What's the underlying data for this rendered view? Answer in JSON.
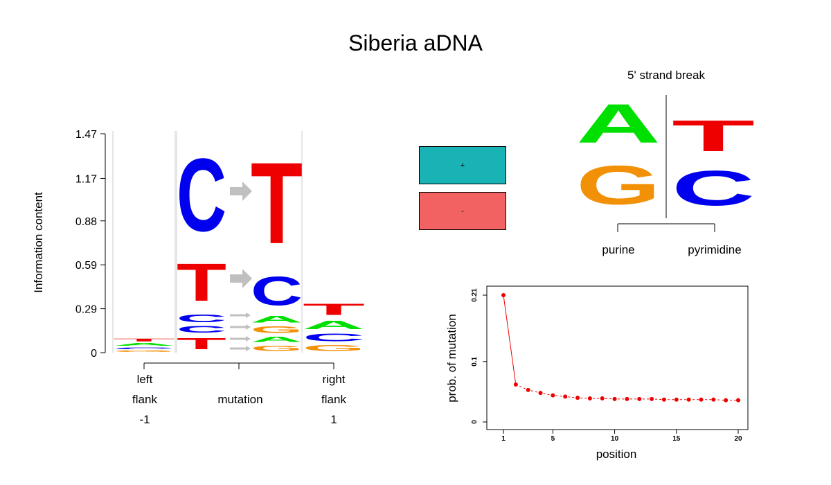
{
  "title": "Siberia aDNA",
  "colors": {
    "A": "#00e000",
    "C": "#0000ee",
    "G": "#f29007",
    "T": "#ee0000",
    "arrow": "#c0c0c0",
    "plus": "#19b2b5",
    "minus": "#f26262",
    "point": "#ee0000"
  },
  "logo": {
    "ylabel": "Information content",
    "yticks": [
      "0",
      "0.29",
      "0.59",
      "0.88",
      "1.17",
      "1.47"
    ],
    "ymax": 1.47,
    "columns": [
      {
        "name": "left-flank",
        "stack": [
          {
            "letter": "G",
            "height": 0.02
          },
          {
            "letter": "C",
            "height": 0.02
          },
          {
            "letter": "A",
            "height": 0.03
          },
          {
            "letter": "T",
            "height": 0.03
          }
        ]
      },
      {
        "name": "mutation-from",
        "stack": [
          {
            "letter": "T",
            "height": 0.12
          },
          {
            "letter": "C",
            "height": 0.07
          },
          {
            "letter": "C",
            "height": 0.08
          },
          {
            "letter": "T",
            "height": 0.4
          },
          {
            "letter": "C",
            "height": 0.78
          }
        ]
      },
      {
        "name": "mutation-to",
        "stack": [
          {
            "letter": "G",
            "height": 0.06
          },
          {
            "letter": "A",
            "height": 0.06
          },
          {
            "letter": "G",
            "height": 0.07
          },
          {
            "letter": "A",
            "height": 0.07
          },
          {
            "letter": "C",
            "height": 0.31
          },
          {
            "letter": "T",
            "height": 0.87
          }
        ]
      },
      {
        "name": "right-flank",
        "stack": [
          {
            "letter": "G",
            "height": 0.06
          },
          {
            "letter": "C",
            "height": 0.08
          },
          {
            "letter": "A",
            "height": 0.09
          },
          {
            "letter": "T",
            "height": 0.12
          }
        ]
      }
    ],
    "xgroups": [
      {
        "lines": [
          "left",
          "flank",
          "-1"
        ]
      },
      {
        "lines": [
          "mutation"
        ]
      },
      {
        "lines": [
          "right",
          "flank",
          "1"
        ]
      }
    ]
  },
  "legend": [
    {
      "label": "+",
      "color": "#19b2b5"
    },
    {
      "label": "-",
      "color": "#f26262"
    }
  ],
  "strand_break": {
    "title": "5' strand break",
    "left_label": "purine",
    "right_label": "pyrimidine",
    "left_stack": [
      {
        "letter": "G",
        "height": 0.5
      },
      {
        "letter": "A",
        "height": 0.5
      }
    ],
    "right_stack": [
      {
        "letter": "C",
        "height": 0.45
      },
      {
        "letter": "T",
        "height": 0.4
      }
    ]
  },
  "chart_data": {
    "type": "line",
    "xlabel": "position",
    "ylabel": "prob. of mutation",
    "x": [
      1,
      2,
      3,
      4,
      5,
      6,
      7,
      8,
      9,
      10,
      11,
      12,
      13,
      14,
      15,
      16,
      17,
      18,
      19,
      20
    ],
    "y": [
      0.21,
      0.062,
      0.053,
      0.048,
      0.044,
      0.042,
      0.04,
      0.039,
      0.039,
      0.038,
      0.038,
      0.038,
      0.038,
      0.037,
      0.037,
      0.037,
      0.037,
      0.037,
      0.036,
      0.036
    ],
    "xticks": [
      "1",
      "5",
      "10",
      "15",
      "20"
    ],
    "yticks": [
      "0",
      "0.1",
      "0.21"
    ],
    "xlim": [
      0,
      21
    ],
    "ylim": [
      0,
      0.21
    ]
  }
}
